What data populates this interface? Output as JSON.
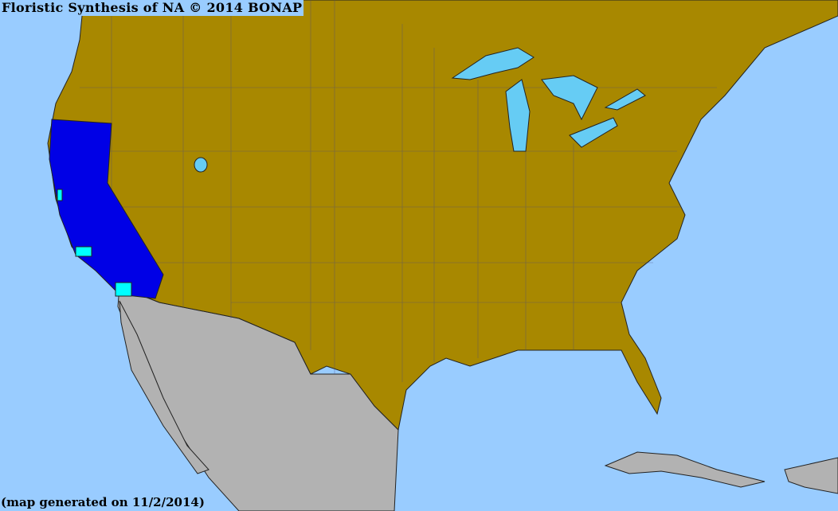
{
  "title": "Floristic Synthesis of NA © 2014 BONAP",
  "footer": "(map generated on 11/2/2014)",
  "colors": {
    "ocean": "#99ccff",
    "present_not_rare": "#a88800",
    "native_state": "#0000e6",
    "present_county": "#00ffff",
    "outside_range": "#b2b2b2",
    "lakes": "#66ccf4",
    "county_lines": "#4a4a80"
  }
}
